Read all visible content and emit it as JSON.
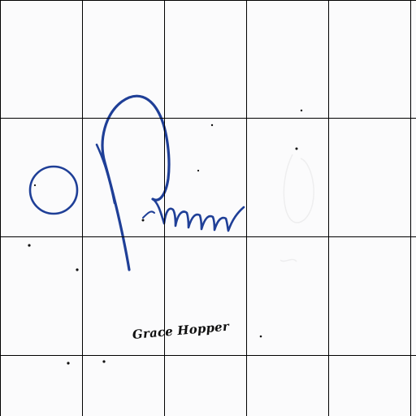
{
  "document": {
    "signature_caption": "Grace Hopper"
  },
  "colors": {
    "ink": "#1f3f97",
    "grid": "#000000",
    "paper": "#fbfbfc",
    "caption_ink": "#111111"
  },
  "icons": {
    "circle_mark": "circle-outline-icon"
  }
}
